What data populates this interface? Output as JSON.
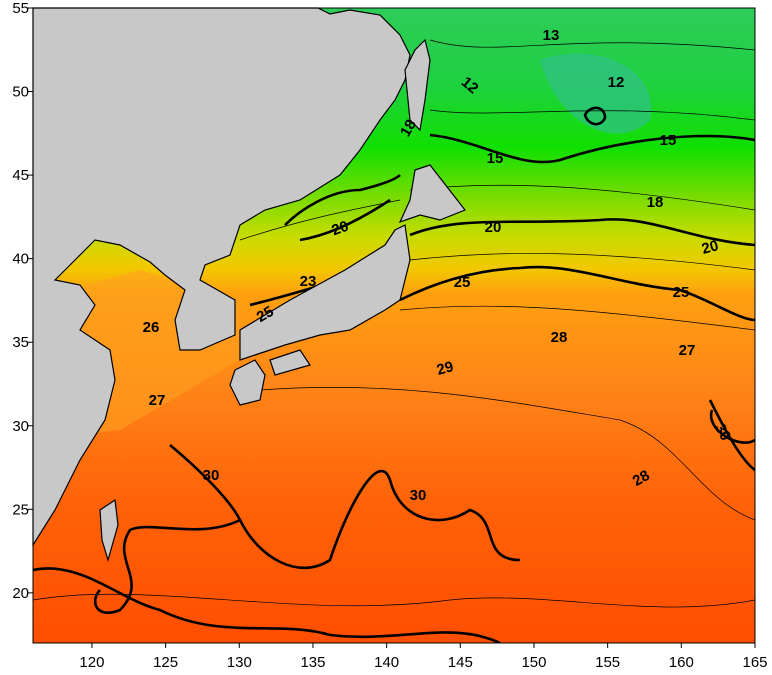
{
  "map": {
    "xlim": [
      116,
      165
    ],
    "ylim": [
      17,
      55
    ],
    "xticks": [
      120,
      125,
      130,
      135,
      140,
      145,
      150,
      155,
      160,
      165
    ],
    "yticks": [
      20,
      25,
      30,
      35,
      40,
      45,
      50,
      55
    ],
    "contour_labels": [
      13,
      12,
      12,
      18,
      15,
      15,
      18,
      20,
      20,
      20,
      23,
      25,
      25,
      25,
      26,
      28,
      27,
      29,
      27,
      30,
      30,
      28,
      30
    ]
  }
}
